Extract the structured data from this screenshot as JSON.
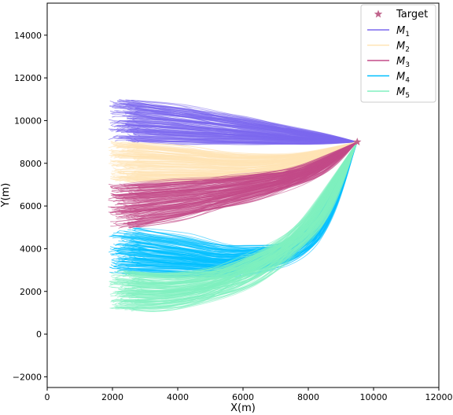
{
  "chart_data": {
    "type": "line",
    "title": "",
    "xlabel": "X(m)",
    "ylabel": "Y(m)",
    "xlim": [
      0,
      12000
    ],
    "ylim": [
      -2500,
      15500
    ],
    "xticks": [
      0,
      2000,
      4000,
      6000,
      8000,
      10000,
      12000
    ],
    "yticks": [
      -2000,
      0,
      2000,
      4000,
      6000,
      8000,
      10000,
      12000,
      14000
    ],
    "xtick_labels": [
      "0",
      "2000",
      "4000",
      "6000",
      "8000",
      "10000",
      "12000"
    ],
    "ytick_labels": [
      "−2000",
      "0",
      "2000",
      "4000",
      "6000",
      "8000",
      "10000",
      "12000",
      "14000"
    ],
    "grid": false,
    "legend_position": "top-right",
    "target": {
      "name": "Target",
      "x": 9500,
      "y": 9000,
      "color": "#c0648c",
      "marker": "star-icon"
    },
    "series": [
      {
        "name": "M",
        "sub": "1",
        "color": "#7b68ee",
        "start_x": [
          2000,
          3000
        ],
        "start_y": [
          9000,
          11000
        ],
        "representative_path": {
          "x": [
            2000,
            4000,
            6000,
            8000,
            9500
          ],
          "y": [
            10000,
            9800,
            9500,
            9200,
            9000
          ]
        }
      },
      {
        "name": "M",
        "sub": "2",
        "color": "#ffe4b5",
        "start_x": [
          2000,
          3000
        ],
        "start_y": [
          7100,
          9000
        ],
        "representative_path": {
          "x": [
            2000,
            4000,
            6000,
            8000,
            9500
          ],
          "y": [
            8000,
            7900,
            7800,
            8200,
            9000
          ]
        }
      },
      {
        "name": "M",
        "sub": "3",
        "color": "#c34b88",
        "start_x": [
          2000,
          3000
        ],
        "start_y": [
          5000,
          7000
        ],
        "representative_path": {
          "x": [
            2000,
            4000,
            6000,
            8000,
            9500
          ],
          "y": [
            6000,
            6300,
            6800,
            7600,
            9000
          ]
        }
      },
      {
        "name": "M",
        "sub": "4",
        "color": "#00bfff",
        "start_x": [
          2000,
          3000
        ],
        "start_y": [
          2800,
          5000
        ],
        "representative_path": {
          "x": [
            2000,
            4000,
            6000,
            8000,
            9500
          ],
          "y": [
            3800,
            3600,
            3400,
            4500,
            9000
          ]
        }
      },
      {
        "name": "M",
        "sub": "5",
        "color": "#80f0c0",
        "start_x": [
          2000,
          3000
        ],
        "start_y": [
          1100,
          3000
        ],
        "representative_path": {
          "x": [
            2000,
            4000,
            6000,
            8000,
            9500
          ],
          "y": [
            2000,
            2000,
            2800,
            5000,
            9000
          ]
        }
      }
    ]
  }
}
